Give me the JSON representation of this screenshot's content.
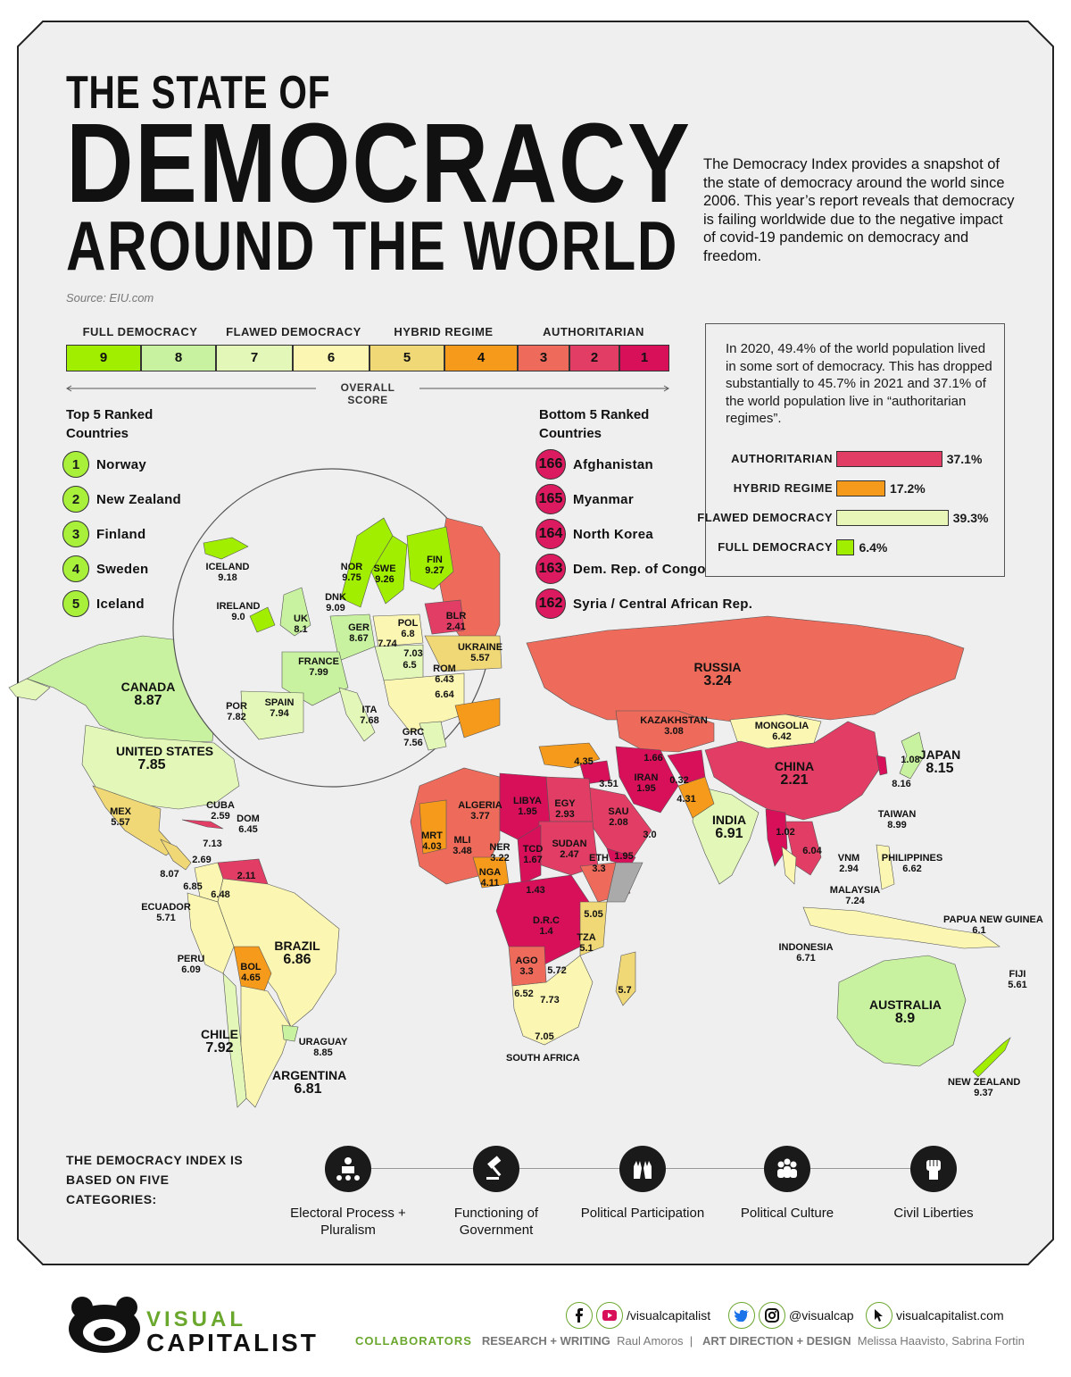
{
  "title": {
    "line1": "THE STATE OF",
    "line2": "DEMOCRACY",
    "line3": "AROUND THE WORLD"
  },
  "source": "Source: EIU.com",
  "intro": "The Democracy Index provides a snapshot of the state of democracy around the world since 2006. This year’s report reveals that democracy is failing worldwide due to the negative impact of covid-19 pandemic on democracy and freedom.",
  "legend": {
    "categories": [
      "FULL DEMOCRACY",
      "FLAWED DEMOCRACY",
      "HYBRID REGIME",
      "AUTHORITARIAN"
    ],
    "scores": [
      {
        "label": "9",
        "color": "#a2ee00"
      },
      {
        "label": "8",
        "color": "#c8f2a0"
      },
      {
        "label": "7",
        "color": "#e2f7b8"
      },
      {
        "label": "6",
        "color": "#fbf7b3"
      },
      {
        "label": "5",
        "color": "#f0d877"
      },
      {
        "label": "4",
        "color": "#f59a1a"
      },
      {
        "label": "3",
        "color": "#ee6b5b"
      },
      {
        "label": "2",
        "color": "#e23d64"
      },
      {
        "label": "1",
        "color": "#d8105a"
      }
    ],
    "axis_label": "OVERALL SCORE"
  },
  "top5": {
    "heading": "Top 5 Ranked Countries",
    "items": [
      {
        "rank": "1",
        "name": "Norway"
      },
      {
        "rank": "2",
        "name": "New Zealand"
      },
      {
        "rank": "3",
        "name": "Finland"
      },
      {
        "rank": "4",
        "name": "Sweden"
      },
      {
        "rank": "5",
        "name": "Iceland"
      }
    ]
  },
  "bottom5": {
    "heading": "Bottom 5 Ranked Countries",
    "items": [
      {
        "rank": "166",
        "name": "Afghanistan"
      },
      {
        "rank": "165",
        "name": "Myanmar"
      },
      {
        "rank": "164",
        "name": "North Korea"
      },
      {
        "rank": "163",
        "name": "Dem. Rep. of Congo"
      },
      {
        "rank": "162",
        "name": "Syria / Central African Rep."
      }
    ]
  },
  "population": {
    "text": "In 2020, 49.4% of the world population lived in some sort of democracy. This has dropped substantially to 45.7% in 2021 and 37.1% of the world population live in “authoritarian regimes”.",
    "bars": [
      {
        "label": "AUTHORITARIAN",
        "value": 37.1,
        "display": "37.1%",
        "color": "#e23d64"
      },
      {
        "label": "HYBRID REGIME",
        "value": 17.2,
        "display": "17.2%",
        "color": "#f59a1a"
      },
      {
        "label": "FLAWED DEMOCRACY",
        "value": 39.3,
        "display": "39.3%",
        "color": "#e8f7b8"
      },
      {
        "label": "FULL DEMOCRACY",
        "value": 6.4,
        "display": "6.4%",
        "color": "#a2ee00"
      }
    ]
  },
  "map_labels": [
    {
      "name": "CANADA",
      "value": "8.87"
    },
    {
      "name": "UNITED STATES",
      "value": "7.85"
    },
    {
      "name": "MEX",
      "value": "5.57"
    },
    {
      "name": "CUBA",
      "value": "2.59"
    },
    {
      "name": "DOM",
      "value": "6.45"
    },
    {
      "name": "",
      "value": "7.13"
    },
    {
      "name": "",
      "value": "2.69"
    },
    {
      "name": "",
      "value": "8.07"
    },
    {
      "name": "",
      "value": "6.85"
    },
    {
      "name": "",
      "value": "6.48"
    },
    {
      "name": "",
      "value": "2.11"
    },
    {
      "name": "ECUADOR",
      "value": "5.71"
    },
    {
      "name": "PERU",
      "value": "6.09"
    },
    {
      "name": "BRAZIL",
      "value": "6.86"
    },
    {
      "name": "BOL",
      "value": "4.65"
    },
    {
      "name": "CHILE",
      "value": "7.92"
    },
    {
      "name": "URAGUAY",
      "value": "8.85"
    },
    {
      "name": "ARGENTINA",
      "value": "6.81"
    },
    {
      "name": "ICELAND",
      "value": "9.18"
    },
    {
      "name": "IRELAND",
      "value": "9.0"
    },
    {
      "name": "UK",
      "value": "8.1"
    },
    {
      "name": "NOR",
      "value": "9.75"
    },
    {
      "name": "SWE",
      "value": "9.26"
    },
    {
      "name": "FIN",
      "value": "9.27"
    },
    {
      "name": "DNK",
      "value": "9.09"
    },
    {
      "name": "GER",
      "value": "8.67"
    },
    {
      "name": "POL",
      "value": "6.8"
    },
    {
      "name": "BLR",
      "value": "2.41"
    },
    {
      "name": "UKRAINE",
      "value": "5.57"
    },
    {
      "name": "FRANCE",
      "value": "7.99"
    },
    {
      "name": "",
      "value": "7.74"
    },
    {
      "name": "",
      "value": "7.03"
    },
    {
      "name": "",
      "value": "6.5"
    },
    {
      "name": "ROM",
      "value": "6.43"
    },
    {
      "name": "",
      "value": "6.64"
    },
    {
      "name": "POR",
      "value": "7.82"
    },
    {
      "name": "SPAIN",
      "value": "7.94"
    },
    {
      "name": "ITA",
      "value": "7.68"
    },
    {
      "name": "GRC",
      "value": "7.56"
    },
    {
      "name": "RUSSIA",
      "value": "3.24"
    },
    {
      "name": "KAZAKHSTAN",
      "value": "3.08"
    },
    {
      "name": "MONGOLIA",
      "value": "6.42"
    },
    {
      "name": "CHINA",
      "value": "2.21"
    },
    {
      "name": "JAPAN",
      "value": "8.15"
    },
    {
      "name": "",
      "value": "1.08"
    },
    {
      "name": "",
      "value": "8.16"
    },
    {
      "name": "TAIWAN",
      "value": "8.99"
    },
    {
      "name": "",
      "value": "4.35"
    },
    {
      "name": "",
      "value": "1.66"
    },
    {
      "name": "",
      "value": "3.51"
    },
    {
      "name": "IRAN",
      "value": "1.95"
    },
    {
      "name": "",
      "value": "0.32"
    },
    {
      "name": "",
      "value": "4.31"
    },
    {
      "name": "SAU",
      "value": "2.08"
    },
    {
      "name": "",
      "value": "3.0"
    },
    {
      "name": "",
      "value": "1.95"
    },
    {
      "name": "INDIA",
      "value": "6.91"
    },
    {
      "name": "",
      "value": "1.02"
    },
    {
      "name": "",
      "value": "6.04"
    },
    {
      "name": "VNM",
      "value": "2.94"
    },
    {
      "name": "PHILIPPINES",
      "value": "6.62"
    },
    {
      "name": "MALAYSIA",
      "value": "7.24"
    },
    {
      "name": "INDONESIA",
      "value": "6.71"
    },
    {
      "name": "PAPUA NEW GUINEA",
      "value": "6.1"
    },
    {
      "name": "FIJI",
      "value": "5.61"
    },
    {
      "name": "AUSTRALIA",
      "value": "8.9"
    },
    {
      "name": "NEW ZEALAND",
      "value": "9.37"
    },
    {
      "name": "ALGERIA",
      "value": "3.77"
    },
    {
      "name": "LIBYA",
      "value": "1.95"
    },
    {
      "name": "EGY",
      "value": "2.93"
    },
    {
      "name": "MRT",
      "value": "4.03"
    },
    {
      "name": "MLI",
      "value": "3.48"
    },
    {
      "name": "NER",
      "value": "3.22"
    },
    {
      "name": "TCD",
      "value": "1.67"
    },
    {
      "name": "SUDAN",
      "value": "2.47"
    },
    {
      "name": "NGA",
      "value": "4.11"
    },
    {
      "name": "ETH",
      "value": "3.3"
    },
    {
      "name": "",
      "value": "1.43"
    },
    {
      "name": "D.R.C",
      "value": "1.4"
    },
    {
      "name": "",
      "value": "5.05"
    },
    {
      "name": "TZA",
      "value": "5.1"
    },
    {
      "name": "AGO",
      "value": "3.3"
    },
    {
      "name": "",
      "value": "5.72"
    },
    {
      "name": "",
      "value": "5.7"
    },
    {
      "name": "",
      "value": "6.52"
    },
    {
      "name": "",
      "value": "7.73"
    },
    {
      "name": "",
      "value": "7.05"
    },
    {
      "name": "SOUTH AFRICA",
      "value": ""
    }
  ],
  "categories": {
    "title": "THE DEMOCRACY INDEX IS BASED ON FIVE CATEGORIES:",
    "items": [
      {
        "name": "Electoral Process + Pluralism",
        "icon": "podium-crowd-icon"
      },
      {
        "name": "Functioning of Government",
        "icon": "gavel-icon"
      },
      {
        "name": "Political Participation",
        "icon": "raised-hands-icon"
      },
      {
        "name": "Political Culture",
        "icon": "people-group-icon"
      },
      {
        "name": "Civil Liberties",
        "icon": "raised-fist-icon"
      }
    ]
  },
  "footer": {
    "brand1": "VISUAL",
    "brand2": "CAPITALIST",
    "social1": "/visualcapitalist",
    "social2": "@visualcap",
    "website": "visualcapitalist.com",
    "collaborators": "COLLABORATORS",
    "research_key": "RESEARCH + WRITING",
    "research_val": "Raul Amoros",
    "design_key": "ART DIRECTION + DESIGN",
    "design_val": "Melissa Haavisto, Sabrina Fortin"
  }
}
